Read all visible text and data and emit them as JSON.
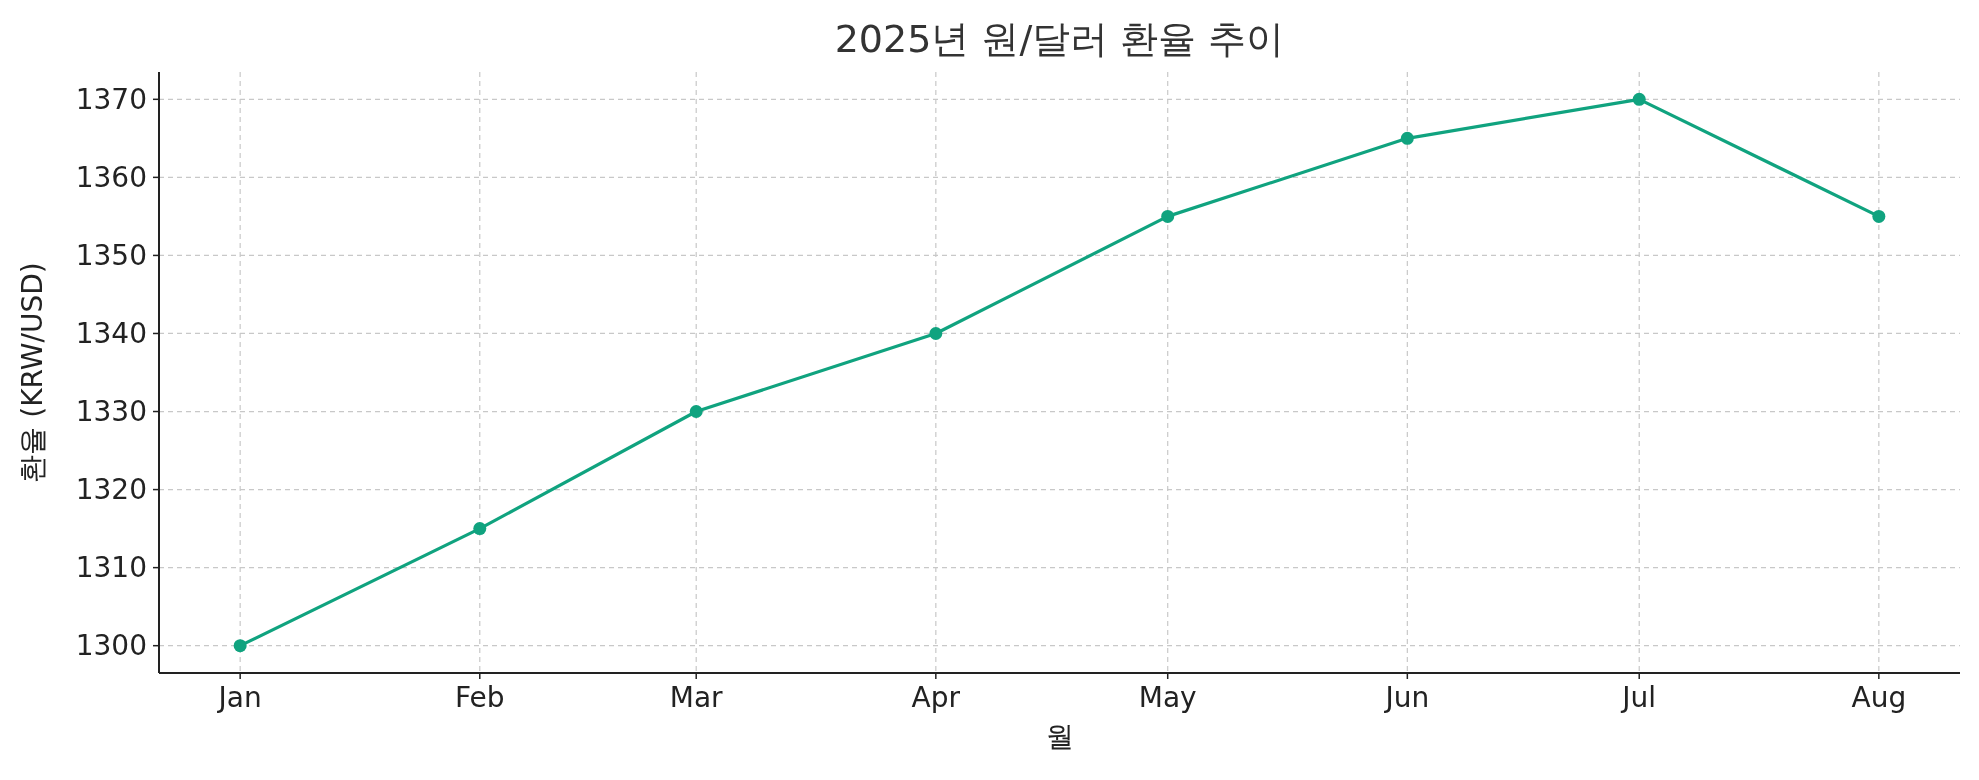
{
  "chart_data": {
    "type": "line",
    "title": "2025년 원/달러 환율 추이",
    "xlabel": "월",
    "ylabel": "환율 (KRW/USD)",
    "x": [
      "2025-01-01",
      "2025-02-01",
      "2025-03-01",
      "2025-04-01",
      "2025-05-01",
      "2025-06-01",
      "2025-07-01",
      "2025-08-01"
    ],
    "series": [
      {
        "color": "#10a37f",
        "values": [
          1300,
          1315,
          1330,
          1340,
          1355,
          1365,
          1370,
          1355
        ]
      }
    ],
    "xlim": [
      "2024-12-21T12:00",
      "2025-08-11T12:00"
    ],
    "xticks": [
      {
        "value": "2025-01-01",
        "label": "Jan"
      },
      {
        "value": "2025-02-01",
        "label": "Feb"
      },
      {
        "value": "2025-03-01",
        "label": "Mar"
      },
      {
        "value": "2025-04-01",
        "label": "Apr"
      },
      {
        "value": "2025-05-01",
        "label": "May"
      },
      {
        "value": "2025-06-01",
        "label": "Jun"
      },
      {
        "value": "2025-07-01",
        "label": "Jul"
      },
      {
        "value": "2025-08-01",
        "label": "Aug"
      }
    ],
    "ylim": [
      1296.5,
      1373.5
    ],
    "yticks": [
      1300,
      1310,
      1320,
      1330,
      1340,
      1350,
      1360,
      1370
    ],
    "grid": true,
    "marker": "circle",
    "line_style": "solid"
  }
}
